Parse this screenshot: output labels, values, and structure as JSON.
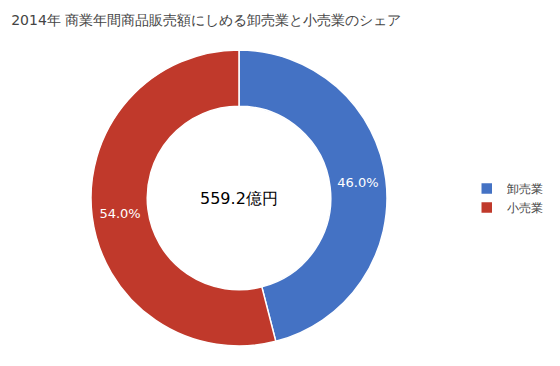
{
  "chart_data": {
    "type": "pie",
    "title": "2014年 商業年間商品販売額にしめる卸売業と小売業のシェア",
    "categories": [
      "卸売業",
      "小売業"
    ],
    "values": [
      46.0,
      54.0
    ],
    "value_labels": [
      "46.0%",
      "54.0%"
    ],
    "colors": [
      "#4472C4",
      "#C0392B"
    ],
    "data_labels": true,
    "legend": "right",
    "annotations": [
      "559.2億円"
    ]
  }
}
